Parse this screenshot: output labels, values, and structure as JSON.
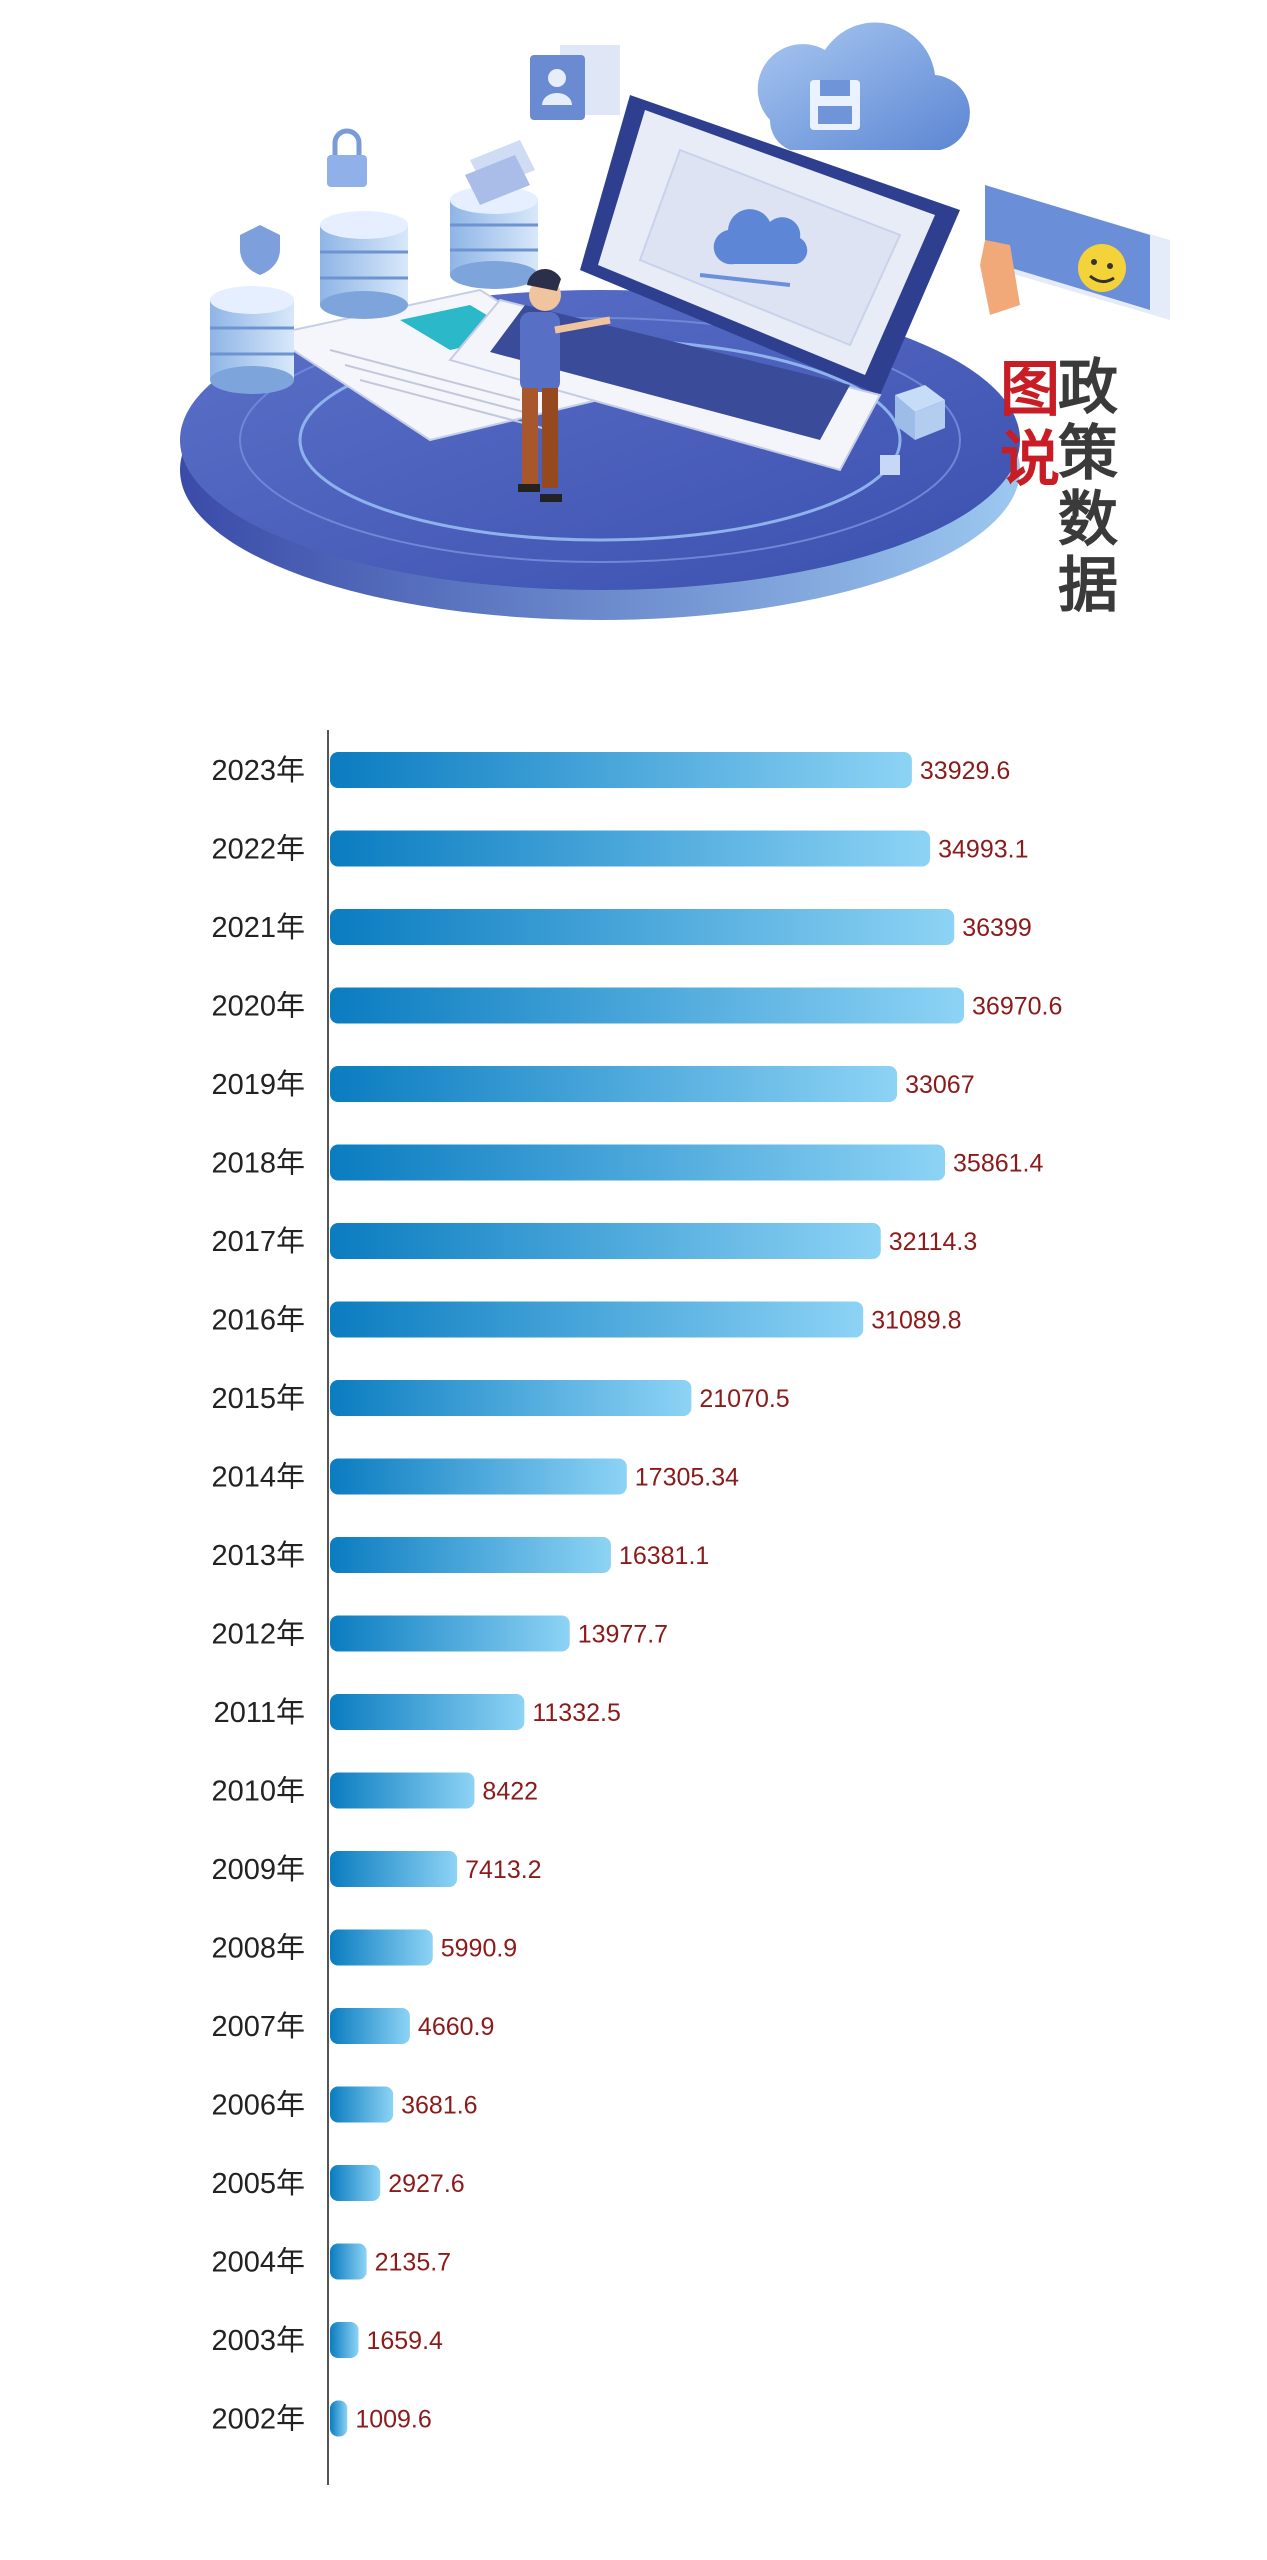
{
  "header": {
    "badge_red": [
      "图",
      "说"
    ],
    "badge_dark": [
      "政",
      "策",
      "数",
      "据"
    ]
  },
  "chart_data": {
    "type": "bar",
    "orientation": "horizontal",
    "categories": [
      "2023年",
      "2022年",
      "2021年",
      "2020年",
      "2019年",
      "2018年",
      "2017年",
      "2016年",
      "2015年",
      "2014年",
      "2013年",
      "2012年",
      "2011年",
      "2010年",
      "2009年",
      "2008年",
      "2007年",
      "2006年",
      "2005年",
      "2004年",
      "2003年",
      "2002年"
    ],
    "values": [
      33929.6,
      34993.1,
      36399,
      36970.6,
      33067,
      35861.4,
      32114.3,
      31089.8,
      21070.5,
      17305.34,
      16381.1,
      13977.7,
      11332.5,
      8422,
      7413.2,
      5990.9,
      4660.9,
      3681.6,
      2927.6,
      2135.7,
      1659.4,
      1009.6
    ],
    "value_labels": [
      "33929.6",
      "34993.1",
      "36399",
      "36970.6",
      "33067",
      "35861.4",
      "32114.3",
      "31089.8",
      "21070.5",
      "17305.34",
      "16381.1",
      "13977.7",
      "11332.5",
      "8422",
      "7413.2",
      "5990.9",
      "4660.9",
      "3681.6",
      "2927.6",
      "2135.7",
      "1659.4",
      "1009.6"
    ],
    "xlim": [
      0,
      40000
    ],
    "grid": false,
    "colors": {
      "bar_start": "#0a7cc0",
      "bar_end": "#8dd3f5",
      "value_label": "#8b1a1a",
      "axis": "#555555",
      "category_label": "#222222"
    }
  }
}
